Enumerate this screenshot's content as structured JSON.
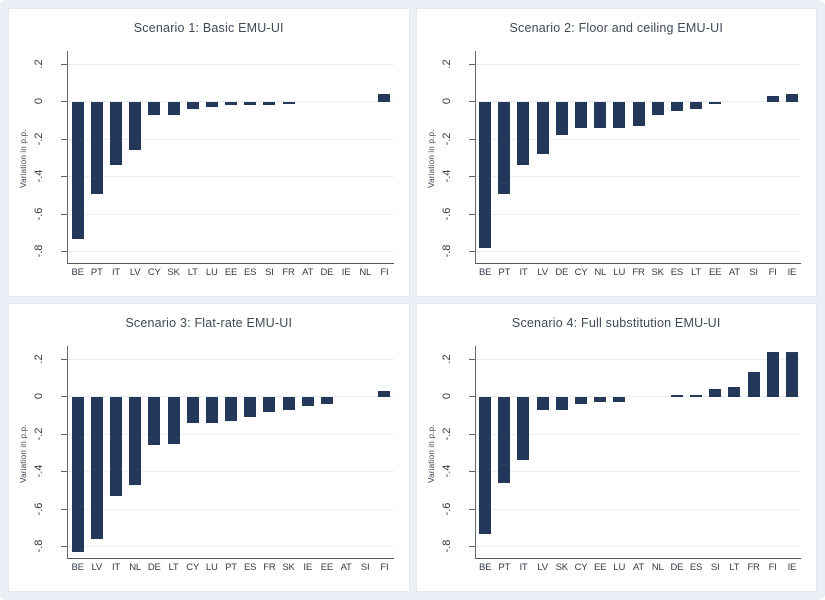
{
  "figure": {
    "background_color": "#eaf0f6",
    "panel_background_color": "#ffffff"
  },
  "style": {
    "bar_color": "#24385a",
    "grid_color": "#e9eef4",
    "axis_color": "#636363",
    "title_text_color": "#3f4a57",
    "tick_text_color": "#333b45"
  },
  "chart_data": [
    {
      "type": "bar",
      "title": "Scenario 1: Basic EMU-UI",
      "xlabel": "",
      "ylabel": "Variation in p.p.",
      "categories": [
        "BE",
        "PT",
        "IT",
        "LV",
        "CY",
        "SK",
        "LT",
        "LU",
        "EE",
        "ES",
        "SI",
        "FR",
        "AT",
        "DE",
        "IE",
        "NL",
        "FI"
      ],
      "values": [
        -0.73,
        -0.49,
        -0.34,
        -0.26,
        -0.07,
        -0.07,
        -0.04,
        -0.03,
        -0.02,
        -0.02,
        -0.02,
        -0.01,
        0,
        0,
        0,
        0,
        0.04
      ],
      "yticks": [
        0.2,
        0,
        -0.2,
        -0.4,
        -0.6,
        -0.8
      ],
      "ytick_labels": [
        ".2",
        "0",
        "-.2",
        "-.4",
        "-.6",
        "-.8"
      ],
      "ylim": [
        -0.86,
        0.27
      ],
      "grid": true,
      "legend": "none"
    },
    {
      "type": "bar",
      "title": "Scenario 2: Floor and ceiling EMU-UI",
      "xlabel": "",
      "ylabel": "Variation in p.p.",
      "categories": [
        "BE",
        "PT",
        "IT",
        "LV",
        "DE",
        "CY",
        "NL",
        "LU",
        "FR",
        "SK",
        "ES",
        "LT",
        "EE",
        "AT",
        "SI",
        "FI",
        "IE"
      ],
      "values": [
        -0.78,
        -0.49,
        -0.34,
        -0.28,
        -0.18,
        -0.14,
        -0.14,
        -0.14,
        -0.13,
        -0.07,
        -0.05,
        -0.04,
        -0.01,
        0,
        0,
        0.03,
        0.04
      ],
      "yticks": [
        0.2,
        0,
        -0.2,
        -0.4,
        -0.6,
        -0.8
      ],
      "ytick_labels": [
        ".2",
        "0",
        "-.2",
        "-.4",
        "-.6",
        "-.8"
      ],
      "ylim": [
        -0.86,
        0.27
      ],
      "grid": true,
      "legend": "none"
    },
    {
      "type": "bar",
      "title": "Scenario 3: Flat-rate EMU-UI",
      "xlabel": "",
      "ylabel": "Variation in p.p.",
      "categories": [
        "BE",
        "LV",
        "IT",
        "NL",
        "DE",
        "LT",
        "CY",
        "LU",
        "PT",
        "ES",
        "FR",
        "SK",
        "IE",
        "EE",
        "AT",
        "SI",
        "FI"
      ],
      "values": [
        -0.83,
        -0.76,
        -0.53,
        -0.47,
        -0.26,
        -0.25,
        -0.14,
        -0.14,
        -0.13,
        -0.11,
        -0.08,
        -0.07,
        -0.05,
        -0.04,
        0,
        0,
        0.03
      ],
      "yticks": [
        0.2,
        0,
        -0.2,
        -0.4,
        -0.6,
        -0.8
      ],
      "ytick_labels": [
        ".2",
        "0",
        "-.2",
        "-.4",
        "-.6",
        "-.8"
      ],
      "ylim": [
        -0.86,
        0.27
      ],
      "grid": true,
      "legend": "none"
    },
    {
      "type": "bar",
      "title": "Scenario 4: Full substitution EMU-UI",
      "xlabel": "",
      "ylabel": "Variation in p.p.",
      "categories": [
        "BE",
        "PT",
        "IT",
        "LV",
        "SK",
        "CY",
        "EE",
        "LU",
        "AT",
        "NL",
        "DE",
        "ES",
        "SI",
        "LT",
        "FR",
        "FI",
        "IE"
      ],
      "values": [
        -0.73,
        -0.46,
        -0.34,
        -0.07,
        -0.07,
        -0.04,
        -0.03,
        -0.03,
        0,
        0,
        0.01,
        0.01,
        0.04,
        0.05,
        0.13,
        0.24,
        0.24
      ],
      "yticks": [
        0.2,
        0,
        -0.2,
        -0.4,
        -0.6,
        -0.8
      ],
      "ytick_labels": [
        ".2",
        "0",
        "-.2",
        "-.4",
        "-.6",
        "-.8"
      ],
      "ylim": [
        -0.86,
        0.27
      ],
      "grid": true,
      "legend": "none"
    }
  ]
}
